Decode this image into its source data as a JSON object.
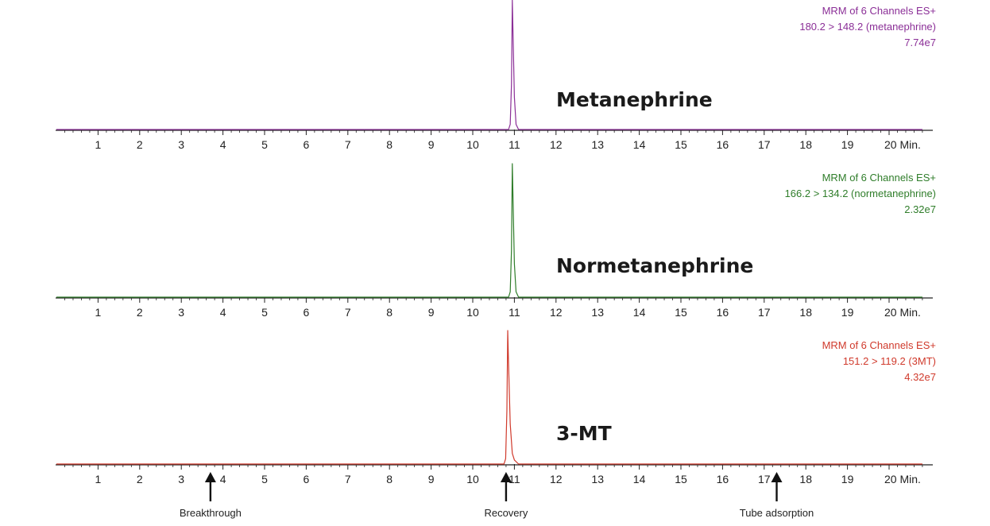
{
  "chart_data": [
    {
      "type": "line",
      "name": "metanephrine",
      "title": "Metanephrine",
      "color": "#8b2f97",
      "info": [
        "MRM of 6 Channels ES+",
        "180.2 > 148.2 (metanephrine)",
        "7.74e7"
      ],
      "xlim": [
        0,
        20.8
      ],
      "ylim": [
        0,
        100
      ],
      "x_ticks": [
        "1",
        "2",
        "3",
        "4",
        "5",
        "6",
        "7",
        "8",
        "9",
        "10",
        "11",
        "12",
        "13",
        "14",
        "15",
        "16",
        "17",
        "18",
        "19",
        "20 Min."
      ],
      "x": [
        0,
        10.86,
        10.9,
        10.93,
        10.95,
        10.97,
        11.0,
        11.04,
        11.1,
        20.8
      ],
      "y": [
        0,
        0,
        4,
        35,
        100,
        70,
        25,
        4,
        0,
        0
      ]
    },
    {
      "type": "line",
      "name": "normetanephrine",
      "title": "Normetanephrine",
      "color": "#2f7d2a",
      "info": [
        "MRM of 6 Channels ES+",
        "166.2 > 134.2 (normetanephrine)",
        "2.32e7"
      ],
      "xlim": [
        0,
        20.8
      ],
      "ylim": [
        0,
        100
      ],
      "x_ticks": [
        "1",
        "2",
        "3",
        "4",
        "5",
        "6",
        "7",
        "8",
        "9",
        "10",
        "11",
        "12",
        "13",
        "14",
        "15",
        "16",
        "17",
        "18",
        "19",
        "20 Min."
      ],
      "x": [
        0,
        10.86,
        10.9,
        10.93,
        10.95,
        10.97,
        11.0,
        11.04,
        11.1,
        20.8
      ],
      "y": [
        0,
        0,
        4,
        35,
        100,
        70,
        25,
        4,
        0,
        0
      ]
    },
    {
      "type": "line",
      "name": "3mt",
      "title": "3-MT",
      "color": "#d03a2c",
      "info": [
        "MRM of 6 Channels ES+",
        "151.2 > 119.2 (3MT)",
        "4.32e7"
      ],
      "xlim": [
        0,
        20.8
      ],
      "ylim": [
        0,
        100
      ],
      "x_ticks": [
        "1",
        "2",
        "3",
        "4",
        "5",
        "6",
        "7",
        "8",
        "9",
        "10",
        "11",
        "12",
        "13",
        "14",
        "15",
        "16",
        "17",
        "18",
        "19",
        "20 Min."
      ],
      "x": [
        0,
        10.75,
        10.79,
        10.82,
        10.84,
        10.86,
        10.9,
        10.95,
        11.0,
        11.1,
        20.8
      ],
      "y": [
        0,
        0,
        4,
        40,
        100,
        75,
        30,
        8,
        3,
        0,
        0
      ]
    }
  ],
  "annotations": [
    {
      "label": "Breakthrough",
      "x": 3.7
    },
    {
      "label": "Recovery",
      "x": 10.8
    },
    {
      "label": "Tube adsorption",
      "x": 17.3
    }
  ]
}
